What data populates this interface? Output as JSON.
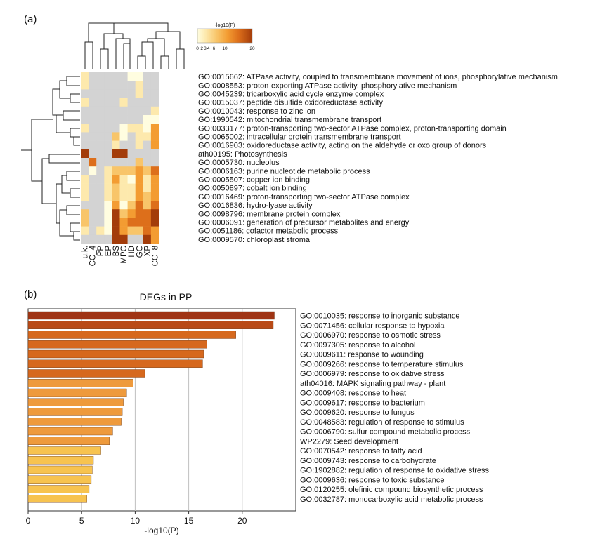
{
  "panel_labels": [
    "(a)",
    "(b)"
  ],
  "colors": {
    "na": "#d3d3d3",
    "scale": [
      "#fffde0",
      "#fde9ad",
      "#f8c56a",
      "#f39c32",
      "#dd6f1b",
      "#a33c0a"
    ],
    "bar_colors": [
      "#9f3414",
      "#b94a17",
      "#d6681d",
      "#ee9a3c",
      "#f7c34f"
    ],
    "grid": "#c0c0c0"
  },
  "chart_data": [
    {
      "type": "heatmap",
      "colorbar": {
        "title": "-log10(P)",
        "ticks": [
          "0",
          "2",
          "3",
          "4",
          "6",
          "10",
          "20"
        ],
        "range": [
          0,
          20
        ]
      },
      "columns": [
        "u.k.",
        "CC_4",
        "PP",
        "EP",
        "BS",
        "MPC",
        "HD",
        "GC",
        "XP",
        "CC_8"
      ],
      "rows": [
        "GO:0015662: ATPase activity, coupled to transmembrane movement of ions, phosphorylative mechanism",
        "GO:0008553: proton-exporting ATPase activity, phosphorylative mechanism",
        "GO:0045239: tricarboxylic acid cycle enzyme complex",
        "GO:0015037: peptide disulfide oxidoreductase activity",
        "GO:0010043: response to zinc ion",
        "GO:1990542: mitochondrial transmembrane transport",
        "GO:0033177: proton-transporting two-sector ATPase complex, proton-transporting domain",
        "GO:0065002: intracellular protein transmembrane transport",
        "GO:0016903: oxidoreductase activity, acting on the aldehyde or oxo group of donors",
        "ath00195: Photosynthesis",
        "GO:0005730: nucleolus",
        "GO:0006163: purine nucleotide metabolic process",
        "GO:0005507: copper ion binding",
        "GO:0050897: cobalt ion binding",
        "GO:0016469: proton-transporting two-sector ATPase complex",
        "GO:0016836: hydro-lyase activity",
        "GO:0098796: membrane protein complex",
        "GO:0006091: generation of precursor metabolites and energy",
        "GO:0051186: cofactor metabolic process",
        "GO:0009570: chloroplast stroma"
      ],
      "values": [
        [
          3,
          null,
          null,
          null,
          null,
          null,
          2,
          2,
          null,
          null
        ],
        [
          3,
          null,
          null,
          null,
          null,
          null,
          null,
          4,
          null,
          null
        ],
        [
          null,
          null,
          null,
          null,
          null,
          null,
          null,
          4,
          null,
          null
        ],
        [
          3,
          null,
          null,
          null,
          null,
          3,
          null,
          null,
          null,
          null
        ],
        [
          null,
          null,
          null,
          null,
          null,
          null,
          null,
          null,
          null,
          4
        ],
        [
          null,
          null,
          null,
          null,
          null,
          null,
          null,
          null,
          2,
          2
        ],
        [
          3,
          null,
          null,
          null,
          null,
          2,
          3,
          3,
          2,
          12
        ],
        [
          null,
          null,
          null,
          null,
          6,
          2,
          null,
          3,
          3,
          12
        ],
        [
          null,
          null,
          null,
          null,
          4,
          null,
          null,
          4,
          null,
          12
        ],
        [
          20,
          null,
          null,
          null,
          20,
          20,
          null,
          null,
          null,
          null
        ],
        [
          null,
          14,
          null,
          null,
          null,
          null,
          null,
          8,
          null,
          null
        ],
        [
          null,
          2,
          null,
          4,
          6,
          6,
          6,
          12,
          6,
          14
        ],
        [
          3,
          null,
          null,
          4,
          10,
          4,
          2,
          12,
          4,
          12
        ],
        [
          3,
          null,
          null,
          3,
          6,
          3,
          4,
          12,
          4,
          12
        ],
        [
          3,
          null,
          null,
          3,
          6,
          4,
          4,
          10,
          6,
          12
        ],
        [
          null,
          null,
          null,
          2,
          10,
          2,
          6,
          14,
          6,
          14
        ],
        [
          8,
          null,
          null,
          2,
          20,
          8,
          10,
          14,
          14,
          20
        ],
        [
          6,
          null,
          null,
          2,
          20,
          10,
          14,
          14,
          14,
          20
        ],
        [
          4,
          null,
          4,
          2,
          20,
          10,
          6,
          6,
          14,
          10
        ],
        [
          null,
          null,
          null,
          null,
          20,
          20,
          null,
          null,
          20,
          10
        ]
      ]
    },
    {
      "type": "bar",
      "title": "DEGs in PP",
      "xlabel": "-log10(P)",
      "xlim": [
        0,
        25
      ],
      "xticks": [
        0,
        5,
        10,
        15,
        20
      ],
      "categories": [
        "GO:0010035: response to inorganic substance",
        "GO:0071456: cellular response to hypoxia",
        "GO:0006970: response to osmotic stress",
        "GO:0097305: response to alcohol",
        "GO:0009611: response to wounding",
        "GO:0009266: response to temperature stimulus",
        "GO:0006979: response to oxidative stress",
        "ath04016: MAPK signaling pathway - plant",
        "GO:0009408: response to heat",
        "GO:0009617: response to bacterium",
        "GO:0009620: response to fungus",
        "GO:0048583: regulation of response to stimulus",
        "GO:0006790: sulfur compound metabolic process",
        "WP2279: Seed development",
        "GO:0070542: response to fatty acid",
        "GO:0009743: response to carbohydrate",
        "GO:1902882: regulation of response to oxidative stress",
        "GO:0009636: response to toxic substance",
        "GO:0120255: olefinic compound biosynthetic process",
        "GO:0032787: monocarboxylic acid metabolic process"
      ],
      "values": [
        23.0,
        22.9,
        19.4,
        16.7,
        16.4,
        16.3,
        10.9,
        9.8,
        9.2,
        8.9,
        8.8,
        8.7,
        7.9,
        7.6,
        6.8,
        6.1,
        6.0,
        5.9,
        5.7,
        5.5
      ],
      "grid": true
    }
  ]
}
